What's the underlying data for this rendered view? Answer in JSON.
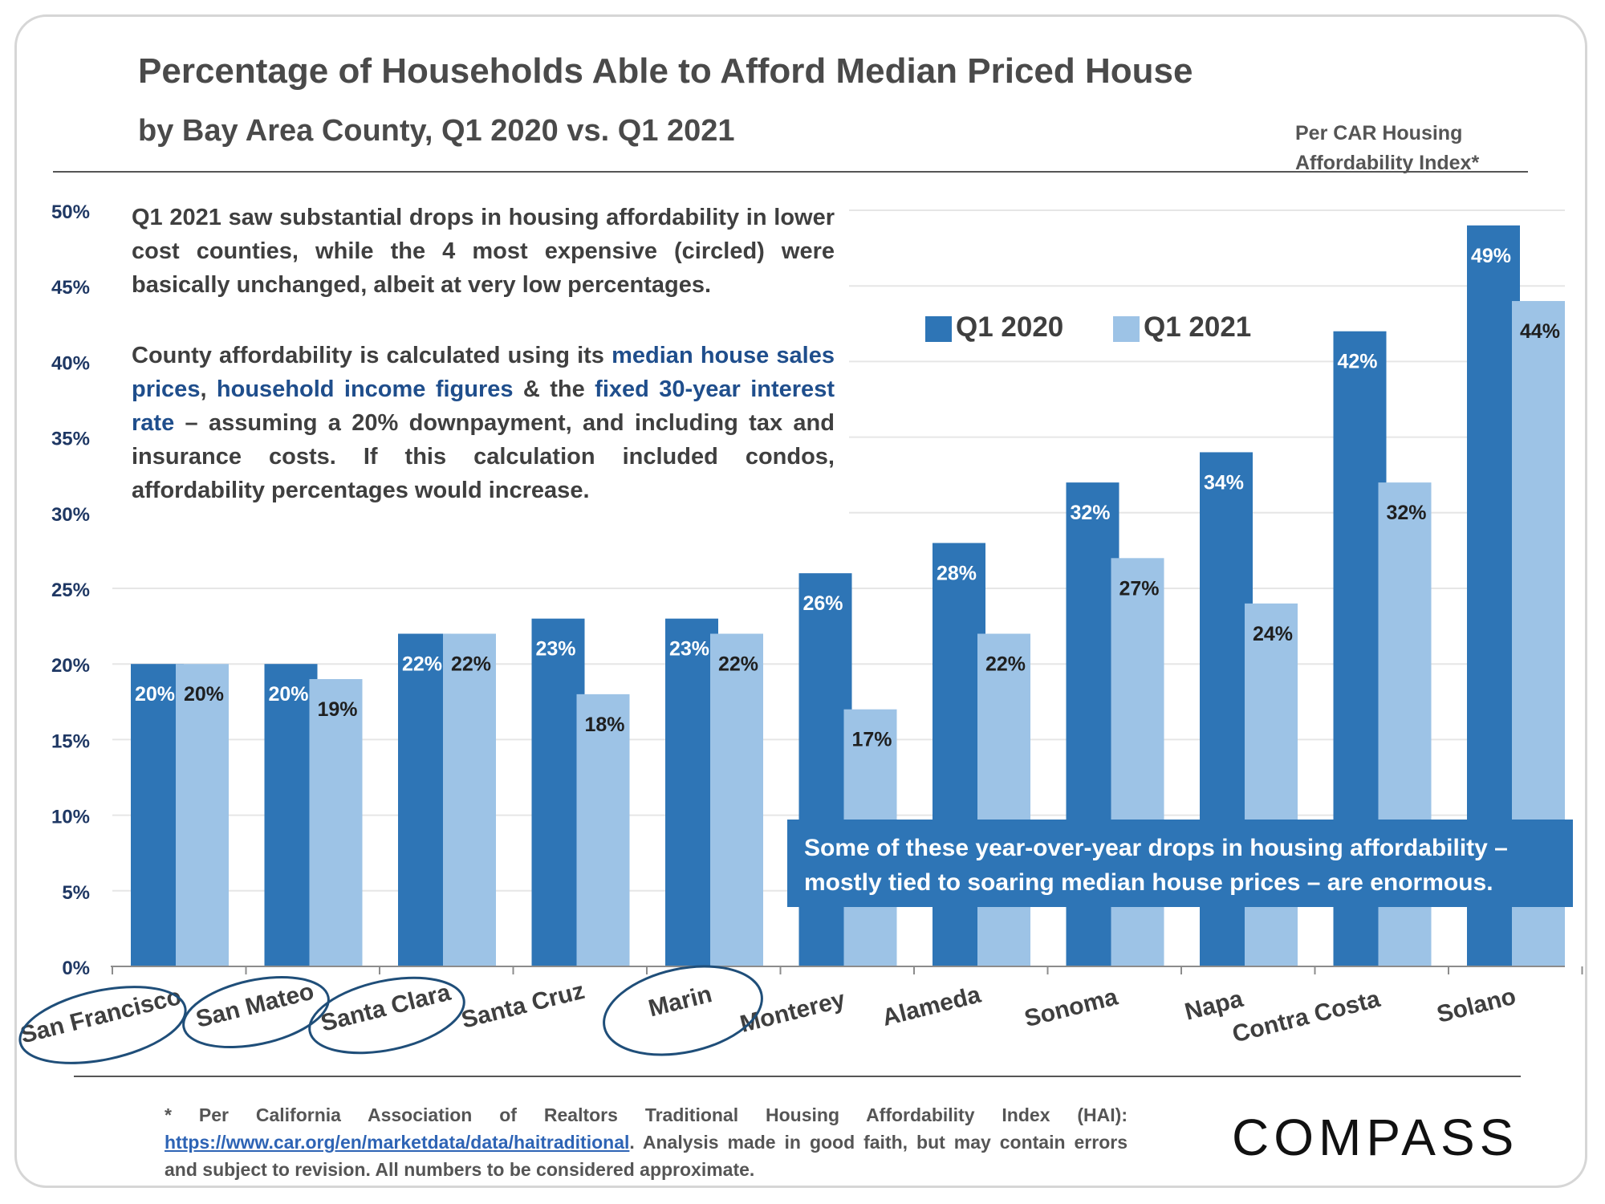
{
  "title": "Percentage of Households Able to Afford Median Priced House",
  "subtitle": "by Bay Area County, Q1 2020 vs. Q1 2021",
  "index_note_line1": "Per CAR Housing",
  "index_note_line2": "Affordability Index*",
  "note1": "Q1 2021 saw substantial drops in housing affordability in lower cost counties, while the 4 most expensive (circled) were basically unchanged, albeit at very low percentages.",
  "note2": {
    "t1": "County affordability is calculated using its ",
    "h1": "median house sales prices",
    "t2": ", ",
    "h2": "household income figures",
    "t3": " & the ",
    "h3": "fixed 30-year interest rate",
    "t4": " – assuming a 20% downpayment, and including tax and insurance costs. If this calculation included condos, affordability percentages would increase."
  },
  "callout": {
    "line1": "Some of these year-over-year drops in housing affordability –",
    "line2": "mostly tied to soaring median house prices – are enormous."
  },
  "footnote": {
    "pre": "* Per California Association of Realtors Traditional Housing Affordability Index (HAI): ",
    "link": "https://www.car.org/en/marketdata/data/haitraditional",
    "post": ". Analysis made in good faith, but may contain errors and subject to revision. All numbers to be considered approximate."
  },
  "logo": "COMPASS",
  "colors": {
    "q1_2020": "#2e75b6",
    "q1_2021": "#9dc3e6",
    "axis_text": "#1f3864",
    "circle": "#1f4e79"
  },
  "circled_counties": [
    "San Francisco",
    "San Mateo",
    "Santa Clara",
    "Marin"
  ],
  "chart_data": {
    "type": "bar",
    "categories": [
      "San Francisco",
      "San Mateo",
      "Santa Clara",
      "Santa Cruz",
      "Marin",
      "Monterey",
      "Alameda",
      "Sonoma",
      "Napa",
      "Contra Costa",
      "Solano"
    ],
    "series": [
      {
        "name": "Q1 2020",
        "values": [
          20,
          20,
          22,
          23,
          23,
          26,
          28,
          32,
          34,
          42,
          49
        ],
        "labels": [
          "20%",
          "20%",
          "22%",
          "23%",
          "23%",
          "26%",
          "28%",
          "32%",
          "34%",
          "42%",
          "49%"
        ]
      },
      {
        "name": "Q1 2021",
        "values": [
          20,
          19,
          22,
          18,
          22,
          17,
          22,
          27,
          24,
          32,
          44
        ],
        "labels": [
          "20%",
          "19%",
          "22%",
          "18%",
          "22%",
          "17%",
          "22%",
          "27%",
          "24%",
          "32%",
          "44%"
        ]
      }
    ],
    "ylim": [
      0,
      50
    ],
    "yticks": [
      "0%",
      "5%",
      "10%",
      "15%",
      "20%",
      "25%",
      "30%",
      "35%",
      "40%",
      "45%",
      "50%"
    ],
    "legend_position": "top-center",
    "grid": true
  }
}
